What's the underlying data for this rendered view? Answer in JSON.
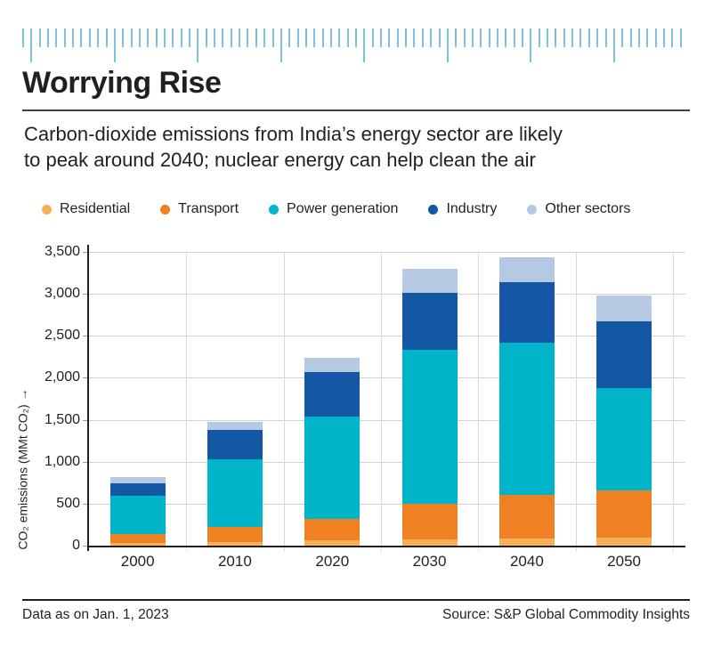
{
  "header": {
    "title": "Worrying Rise",
    "subtitle_line1": "Carbon-dioxide emissions from India’s energy sector are likely",
    "subtitle_line2": "to peak around 2040; nuclear energy can help clean the air"
  },
  "chart_data": {
    "type": "bar",
    "stacked": true,
    "categories": [
      "2000",
      "2010",
      "2020",
      "2030",
      "2040",
      "2050"
    ],
    "series": [
      {
        "name": "Residential",
        "color": "#f7b05a",
        "values": [
          40,
          55,
          70,
          85,
          95,
          105
        ]
      },
      {
        "name": "Transport",
        "color": "#f08122",
        "values": [
          105,
          175,
          260,
          430,
          515,
          560
        ]
      },
      {
        "name": "Power generation",
        "color": "#00b5c9",
        "values": [
          460,
          810,
          1220,
          1835,
          1820,
          1220
        ]
      },
      {
        "name": "Industry",
        "color": "#1458a5",
        "values": [
          150,
          350,
          530,
          670,
          720,
          800
        ]
      },
      {
        "name": "Other sectors",
        "color": "#b5c9e2",
        "values": [
          75,
          90,
          170,
          290,
          300,
          305
        ]
      }
    ],
    "totals": [
      830,
      1480,
      2250,
      3310,
      3450,
      2990
    ],
    "title": "Worrying Rise",
    "xlabel": "",
    "ylabel": "CO₂ emissions (MMt CO₂) →",
    "ylim": [
      0,
      3500
    ],
    "ytick_step": 500,
    "ytick_labels": [
      "0",
      "500",
      "1,000",
      "1,500",
      "2,000",
      "2,500",
      "3,000",
      "3,500"
    ],
    "grid": true,
    "legend_position": "top"
  },
  "footer": {
    "left": "Data as on Jan. 1, 2023",
    "right": "Source: S&P Global Commodity Insights"
  },
  "colors": {
    "ruler_tick": "#7cc2de",
    "grid": "#d2d2d2",
    "axis": "#231f20",
    "text": "#231f20"
  }
}
